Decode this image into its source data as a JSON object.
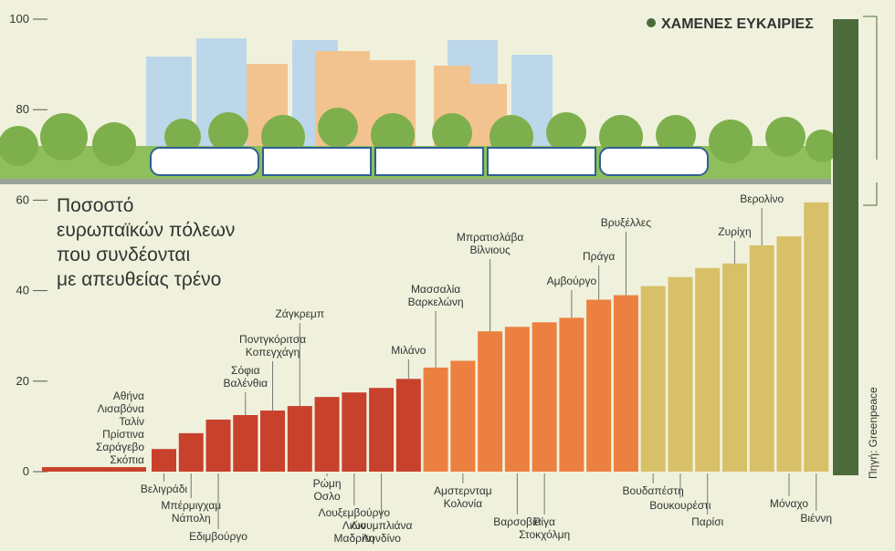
{
  "chart_data": {
    "type": "bar",
    "title": [
      "Ποσοστό",
      "ευρωπαϊκών πόλεων",
      "που συνδέονται",
      "με απευθείας τρένο"
    ],
    "source": "Πηγή: Greenpeace",
    "categories": [
      [
        "Αθήνα",
        "Λισαβόνα",
        "Ταλίν",
        "Πρίστινα",
        "Σαράγεβο",
        "Σκόπια"
      ],
      [
        "Βελιγράδι"
      ],
      [
        "Μπέρμιγχαμ",
        "Νάπολη"
      ],
      [
        "Εδιμβούργο"
      ],
      [
        "Σόφια",
        "Βαλένθια"
      ],
      [
        "Ποντγκόριτσα",
        "Κοπεγχάγη"
      ],
      [
        "Ζάγκρεμπ"
      ],
      [
        "Ρώμη",
        "Οσλο"
      ],
      [
        "Λουξεμβούργο",
        "Λιών",
        "Μαδρίτη"
      ],
      [
        "Λιουμπλιάνα",
        "Λονδίνο"
      ],
      [
        "Μιλάνο"
      ],
      [
        "Μασσαλία",
        "Βαρκελώνη"
      ],
      [
        "Αμστερνταμ",
        "Κολονία"
      ],
      [
        "Μπρατισλάβα",
        "Βίλνιους"
      ],
      [
        "Βαρσοβία"
      ],
      [
        "Ρίγα",
        "Στοκχόλμη"
      ],
      [
        "Αμβούργο"
      ],
      [
        "Πράγα"
      ],
      [
        "Βρυξέλλες"
      ],
      [
        "Βουδαπέστη"
      ],
      [
        "Βουκουρέστι"
      ],
      [
        "Παρίσι"
      ],
      [
        "Ζυρίχη"
      ],
      [
        "Βερολίνο"
      ],
      [
        "Μόναχο"
      ],
      [
        "Βιέννη"
      ]
    ],
    "values": [
      1,
      5,
      8.5,
      11.5,
      12.5,
      13.5,
      14.5,
      16.5,
      17.5,
      18.5,
      20.5,
      23,
      24.5,
      31,
      32,
      33,
      34,
      38,
      39,
      41,
      43,
      45,
      46,
      50,
      52,
      59.5
    ],
    "colors": [
      "#c8412c",
      "#c8412c",
      "#c8412c",
      "#c8412c",
      "#c8412c",
      "#c8412c",
      "#c8412c",
      "#c8412c",
      "#c8412c",
      "#c8412c",
      "#c8412c",
      "#ec8040",
      "#ec8040",
      "#ec8040",
      "#ec8040",
      "#ec8040",
      "#ec8040",
      "#ec8040",
      "#ec8040",
      "#d8c068",
      "#d8c068",
      "#d8c068",
      "#d8c068",
      "#d8c068",
      "#d8c068",
      "#d8c068"
    ],
    "lost_opportunities": {
      "name": "ΧΑΜΕΝΕΣ ΕΥΚΑΙΡΙΕΣ",
      "value": 100,
      "color": "#4b6b3b"
    },
    "ylim": [
      0,
      100
    ],
    "yticks": [
      0,
      20,
      40,
      60,
      80,
      100
    ]
  }
}
